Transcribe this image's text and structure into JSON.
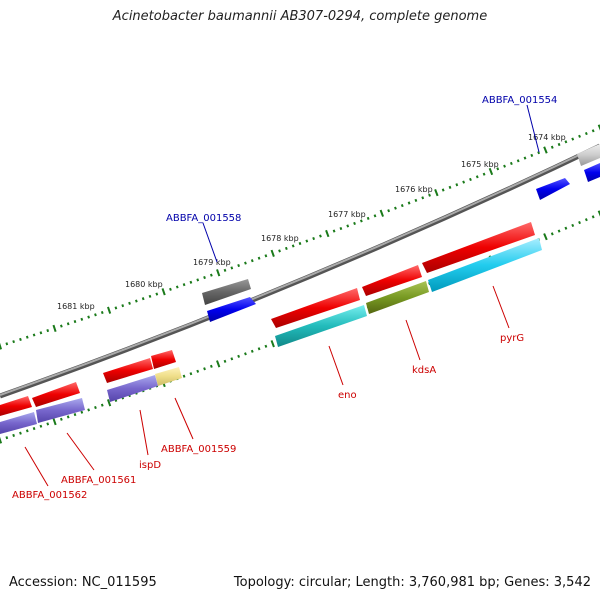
{
  "title": "Acinetobacter baumannii AB307-0294, complete genome",
  "footer": {
    "accession": "Accession: NC_011595",
    "summary": "Topology: circular; Length: 3,760,981 bp; Genes: 3,542"
  },
  "colors": {
    "backbone": "#8c8c8c",
    "tick": "#1a7a1a",
    "label_red": "#cc0000",
    "label_blue": "#0000aa"
  },
  "scale_labels": [
    "1674 kbp",
    "1675 kbp",
    "1676 kbp",
    "1677 kbp",
    "1678 kbp",
    "1679 kbp",
    "1680 kbp",
    "1681 kbp"
  ],
  "gene_labels": [
    {
      "text": "ABBFA_001554",
      "color": "blue"
    },
    {
      "text": "ABBFA_001558",
      "color": "blue"
    },
    {
      "text": "pyrG",
      "color": "red"
    },
    {
      "text": "kdsA",
      "color": "red"
    },
    {
      "text": "eno",
      "color": "red"
    },
    {
      "text": "ABBFA_001559",
      "color": "red"
    },
    {
      "text": "ispD",
      "color": "red"
    },
    {
      "text": "ABBFA_001561",
      "color": "red"
    },
    {
      "text": "ABBFA_001562",
      "color": "red"
    }
  ]
}
